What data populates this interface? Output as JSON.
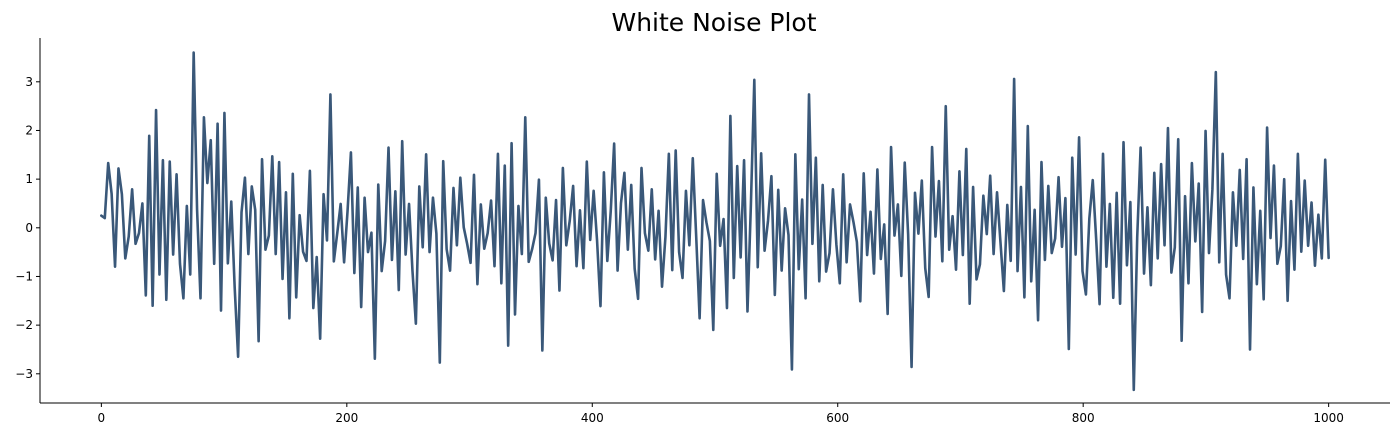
{
  "chart_data": {
    "type": "line",
    "title": "White Noise Plot",
    "xlabel": "",
    "ylabel": "",
    "xlim": [
      -50,
      1050
    ],
    "ylim": [
      -3.6,
      3.9
    ],
    "x_ticks": [
      0,
      200,
      400,
      600,
      800,
      1000
    ],
    "x_tick_labels": [
      "0",
      "200",
      "400",
      "600",
      "800",
      "1000"
    ],
    "y_ticks": [
      3,
      2,
      1,
      0,
      -1,
      -2,
      -3
    ],
    "y_tick_labels": [
      "3",
      "2",
      "1",
      "0",
      "−1",
      "−2",
      "−3"
    ],
    "grid": false,
    "legend": "none",
    "line_color": "#3a5879",
    "axis_color": "#000000",
    "series": [
      {
        "x_start": 0,
        "x_step": 1,
        "values": [
          0.25,
          0.2,
          1.33,
          0.7,
          -0.8,
          1.22,
          0.69,
          -0.63,
          -0.18,
          0.79,
          -0.33,
          -0.11,
          0.5,
          -1.39,
          1.89,
          -1.6,
          2.42,
          -0.96,
          1.39,
          -1.48,
          1.36,
          -0.55,
          1.1,
          -0.74,
          -1.45,
          0.45,
          -0.96,
          3.6,
          0.37,
          -1.45,
          2.27,
          0.92,
          1.8,
          -0.74,
          2.14,
          -1.7,
          2.36,
          -0.73,
          0.54,
          -1.23,
          -2.65,
          0.32,
          1.03,
          -0.54,
          0.85,
          0.37,
          -2.33,
          1.41,
          -0.45,
          -0.16,
          1.47,
          -0.54,
          1.35,
          -1.05,
          0.73,
          -1.86,
          1.11,
          -1.43,
          0.26,
          -0.49,
          -0.68,
          1.17,
          -1.65,
          -0.6,
          -2.28,
          0.69,
          -0.26,
          2.74,
          -0.69,
          -0.11,
          0.49,
          -0.71,
          0.33,
          1.55,
          -0.93,
          0.83,
          -1.63,
          0.62,
          -0.5,
          -0.1,
          -2.69,
          0.89,
          -0.89,
          -0.27,
          1.65,
          -0.66,
          0.75,
          -1.28,
          1.78,
          -0.55,
          0.49,
          -0.88,
          -1.97,
          0.85,
          -0.4,
          1.51,
          -0.5,
          0.62,
          -0.12,
          -2.77,
          1.37,
          -0.44,
          -0.88,
          0.82,
          -0.36,
          1.03,
          0.01,
          -0.33,
          -0.72,
          1.09,
          -1.16,
          0.48,
          -0.43,
          -0.11,
          0.56,
          -0.79,
          1.52,
          -1.14,
          1.28,
          -2.42,
          1.74,
          -1.78,
          0.45,
          -0.54,
          2.27,
          -0.7,
          -0.44,
          -0.11,
          0.99,
          -2.52,
          0.62,
          -0.32,
          -0.67,
          0.57,
          -1.29,
          1.23,
          -0.36,
          0.14,
          0.86,
          -0.79,
          0.36,
          -0.83,
          1.36,
          -0.25,
          0.76,
          -0.26,
          -1.61,
          1.14,
          -0.68,
          0.34,
          1.73,
          -0.88,
          0.51,
          1.13,
          -0.45,
          0.88,
          -0.84,
          -1.46,
          1.23,
          -0.11,
          -0.47,
          0.79,
          -0.65,
          0.35,
          -1.21,
          -0.19,
          1.52,
          -0.87,
          1.59,
          -0.5,
          -1.03,
          0.76,
          -0.36,
          1.43,
          -0.18,
          -1.86,
          0.57,
          0.11,
          -0.27,
          -2.1,
          1.11,
          -0.37,
          0.18,
          -1.65,
          2.3,
          -1.03,
          1.27,
          -0.61,
          1.39,
          -1.72,
          0.48,
          3.04,
          -0.81,
          1.53,
          -0.47,
          0.14,
          1.06,
          -1.38,
          0.78,
          -0.88,
          0.4,
          -0.15,
          -2.91,
          1.51,
          -0.85,
          0.58,
          -1.45,
          2.74,
          -0.33,
          1.44,
          -1.1,
          0.88,
          -0.9,
          -0.52,
          0.79,
          -0.34,
          -1.14,
          1.1,
          -0.71,
          0.48,
          0.12,
          -0.29,
          -1.51,
          1.12,
          -0.56,
          0.33,
          -0.94,
          1.2,
          -0.64,
          0.07,
          -1.77,
          1.66,
          -0.16,
          0.48,
          -0.99,
          1.34,
          -0.14,
          -2.86,
          0.72,
          -0.12,
          0.97,
          -0.83,
          -1.42,
          1.66,
          -0.18,
          0.96,
          -0.69,
          2.5,
          -0.45,
          0.24,
          -0.86,
          1.16,
          -0.56,
          1.62,
          -1.56,
          0.84,
          -1.06,
          -0.75,
          0.66,
          -0.13,
          1.07,
          -0.54,
          0.73,
          -0.29,
          -1.3,
          0.47,
          -0.68,
          3.06,
          -0.89,
          0.84,
          -1.43,
          2.09,
          -1.1,
          0.37,
          -1.9,
          1.35,
          -0.66,
          0.86,
          -0.52,
          -0.22,
          1.04,
          -0.39,
          0.61,
          -2.49,
          1.44,
          -0.55,
          1.86,
          -0.89,
          -1.37,
          0.19,
          0.98,
          -0.23,
          -1.57,
          1.52,
          -0.8,
          0.49,
          -1.44,
          0.72,
          -1.56,
          1.76,
          -0.77,
          0.53,
          -3.33,
          -0.2,
          1.65,
          -0.94,
          0.42,
          -1.18,
          1.13,
          -0.63,
          1.31,
          -0.36,
          2.05,
          -0.92,
          -0.4,
          1.82,
          -2.32,
          0.65,
          -1.14,
          1.33,
          -0.28,
          0.91,
          -1.73,
          1.99,
          -0.52,
          0.79,
          3.2,
          -0.71,
          1.52,
          -0.96,
          -1.45,
          0.73,
          -0.37,
          1.19,
          -0.64,
          1.41,
          -2.5,
          0.83,
          -1.16,
          0.35,
          -1.47,
          2.06,
          -0.21,
          1.28,
          -0.74,
          -0.38,
          1.0,
          -1.5,
          0.55,
          -0.86,
          1.52,
          -0.49,
          0.97,
          -0.37,
          0.52,
          -0.78,
          0.27,
          -0.63,
          1.4,
          -0.62
        ],
        "note_on_sampling": ""
      }
    ]
  }
}
